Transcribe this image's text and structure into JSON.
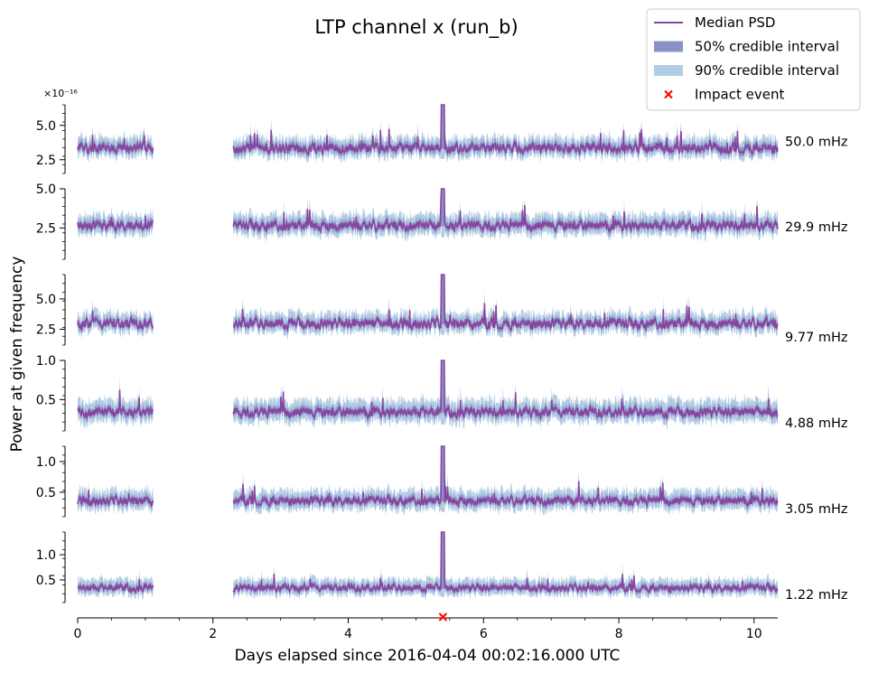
{
  "chart_data": {
    "type": "area",
    "title": "LTP channel x (run_b)",
    "xlabel": "Days elapsed since 2016-04-04 00:02:16.000 UTC",
    "ylabel": "Power at given frequency",
    "x_ticks": [
      "0",
      "2",
      "4",
      "6",
      "8",
      "10"
    ],
    "xlim": [
      0,
      10.35
    ],
    "data_segments": [
      [
        0,
        1.12
      ],
      [
        2.3,
        10.35
      ]
    ],
    "gap": [
      1.12,
      2.3
    ],
    "legend": {
      "placement": "top-right",
      "entries": [
        {
          "label": "Median PSD",
          "kind": "line",
          "color": "#8845a0"
        },
        {
          "label": "50% credible interval",
          "kind": "patch",
          "color": "#8b93c6"
        },
        {
          "label": "90% credible interval",
          "kind": "patch",
          "color": "#b2cce3"
        },
        {
          "label": "Impact event",
          "kind": "marker",
          "color": "#ff0000"
        }
      ]
    },
    "impact_event": {
      "x": 5.4
    },
    "colors": {
      "median": "#8845a0",
      "ci50": "#8b93c6",
      "ci90": "#b2cce3",
      "impact": "#ff0000"
    },
    "panels": [
      {
        "frequency_label": "50.0 mHz",
        "offset_text": "×10⁻¹⁶",
        "ylim": [
          1.5,
          6.5
        ],
        "y_ticks": [
          {
            "v": 2.5,
            "label": "2.5"
          },
          {
            "v": 5.0,
            "label": "5.0"
          }
        ],
        "median_level": 3.3,
        "noise": 0.45,
        "band50": 0.35,
        "band90": 0.75,
        "spike_peak": 6.5
      },
      {
        "frequency_label": "29.9 mHz",
        "offset_text": "",
        "ylim": [
          0.5,
          5.0
        ],
        "y_ticks": [
          {
            "v": 2.5,
            "label": "2.5"
          },
          {
            "v": 5.0,
            "label": "5.0"
          }
        ],
        "median_level": 2.6,
        "noise": 0.4,
        "band50": 0.3,
        "band90": 0.7,
        "spike_peak": 5.0
      },
      {
        "frequency_label": "9.77 mHz",
        "offset_text": "",
        "ylim": [
          1.2,
          7.0
        ],
        "y_ticks": [
          {
            "v": 2.5,
            "label": "2.5"
          },
          {
            "v": 5.0,
            "label": "5.0"
          }
        ],
        "median_level": 2.9,
        "noise": 0.55,
        "band50": 0.35,
        "band90": 0.85,
        "spike_peak": 7.0
      },
      {
        "frequency_label": "4.88 mHz",
        "offset_text": "",
        "ylim": [
          0.1,
          1.0
        ],
        "y_ticks": [
          {
            "v": 0.5,
            "label": "0.5"
          },
          {
            "v": 1.0,
            "label": "1.0"
          }
        ],
        "median_level": 0.33,
        "noise": 0.08,
        "band50": 0.06,
        "band90": 0.15,
        "spike_peak": 1.0
      },
      {
        "frequency_label": "3.05 mHz",
        "offset_text": "",
        "ylim": [
          0.1,
          1.25
        ],
        "y_ticks": [
          {
            "v": 0.5,
            "label": "0.5"
          },
          {
            "v": 1.0,
            "label": "1.0"
          }
        ],
        "median_level": 0.35,
        "noise": 0.09,
        "band50": 0.07,
        "band90": 0.17,
        "spike_peak": 1.25
      },
      {
        "frequency_label": "1.22 mHz",
        "offset_text": "",
        "ylim": [
          0.05,
          1.45
        ],
        "y_ticks": [
          {
            "v": 0.5,
            "label": "0.5"
          },
          {
            "v": 1.0,
            "label": "1.0"
          }
        ],
        "median_level": 0.33,
        "noise": 0.09,
        "band50": 0.07,
        "band90": 0.17,
        "spike_peak": 1.45
      }
    ]
  }
}
